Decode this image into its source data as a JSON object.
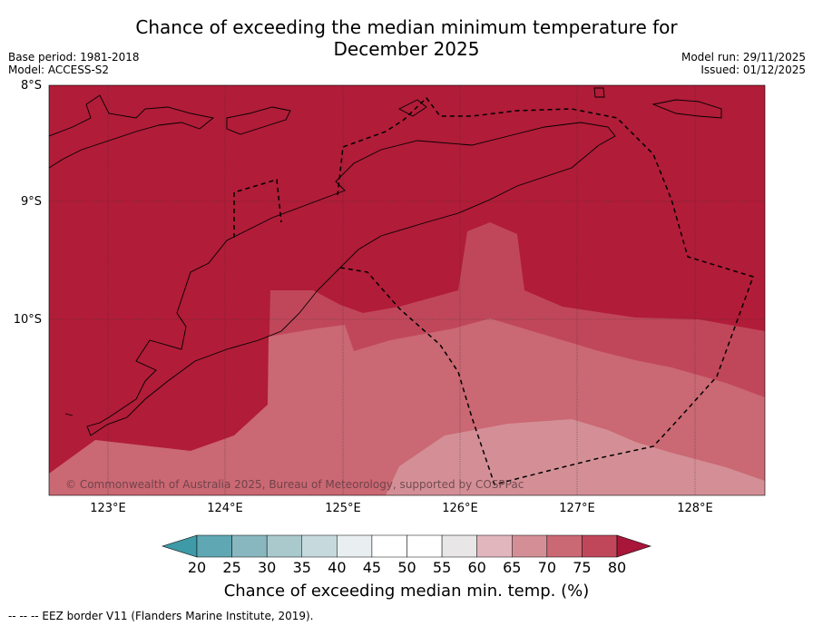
{
  "title": {
    "line1": "Chance of exceeding the median minimum temperature for",
    "line2": "December 2025"
  },
  "meta_left": {
    "base_period": "Base period: 1981-2018",
    "model": "Model: ACCESS-S2"
  },
  "meta_right": {
    "model_run": "Model run: 29/11/2025",
    "issued": "Issued: 01/12/2025"
  },
  "map": {
    "latitude_labels": [
      "8°S",
      "9°S",
      "10°S"
    ],
    "longitude_labels": [
      "123°E",
      "124°E",
      "125°E",
      "126°E",
      "127°E",
      "128°E"
    ],
    "copyright": "© Commonwealth of Australia 2025, Bureau of Meteorology, supported by COSPPac",
    "regions": [
      {
        "name": "75-80%",
        "color": "#b11c38"
      },
      {
        "name": "70-75%",
        "color": "#c0475a"
      },
      {
        "name": "65-70%",
        "color": "#ca6873"
      },
      {
        "name": "60-65%",
        "color": "#d48f96"
      }
    ]
  },
  "colorbar": {
    "ticks": [
      "20",
      "25",
      "30",
      "35",
      "40",
      "45",
      "50",
      "55",
      "60",
      "65",
      "70",
      "75",
      "80"
    ],
    "colors": [
      "#5fa7b3",
      "#89b7c0",
      "#a9c9cd",
      "#c6d9dc",
      "#e9eff0",
      "#ffffff",
      "#ffffff",
      "#e9e6e7",
      "#e2b6bd",
      "#d48f96",
      "#ca6873",
      "#c0475a"
    ],
    "low_extend_color": "#3f9aa7",
    "high_extend_color": "#a8163a",
    "label": "Chance of exceeding median min. temp. (%)"
  },
  "footnote": "--  --  -- EEZ border V11 (Flanders Marine Institute, 2019)."
}
